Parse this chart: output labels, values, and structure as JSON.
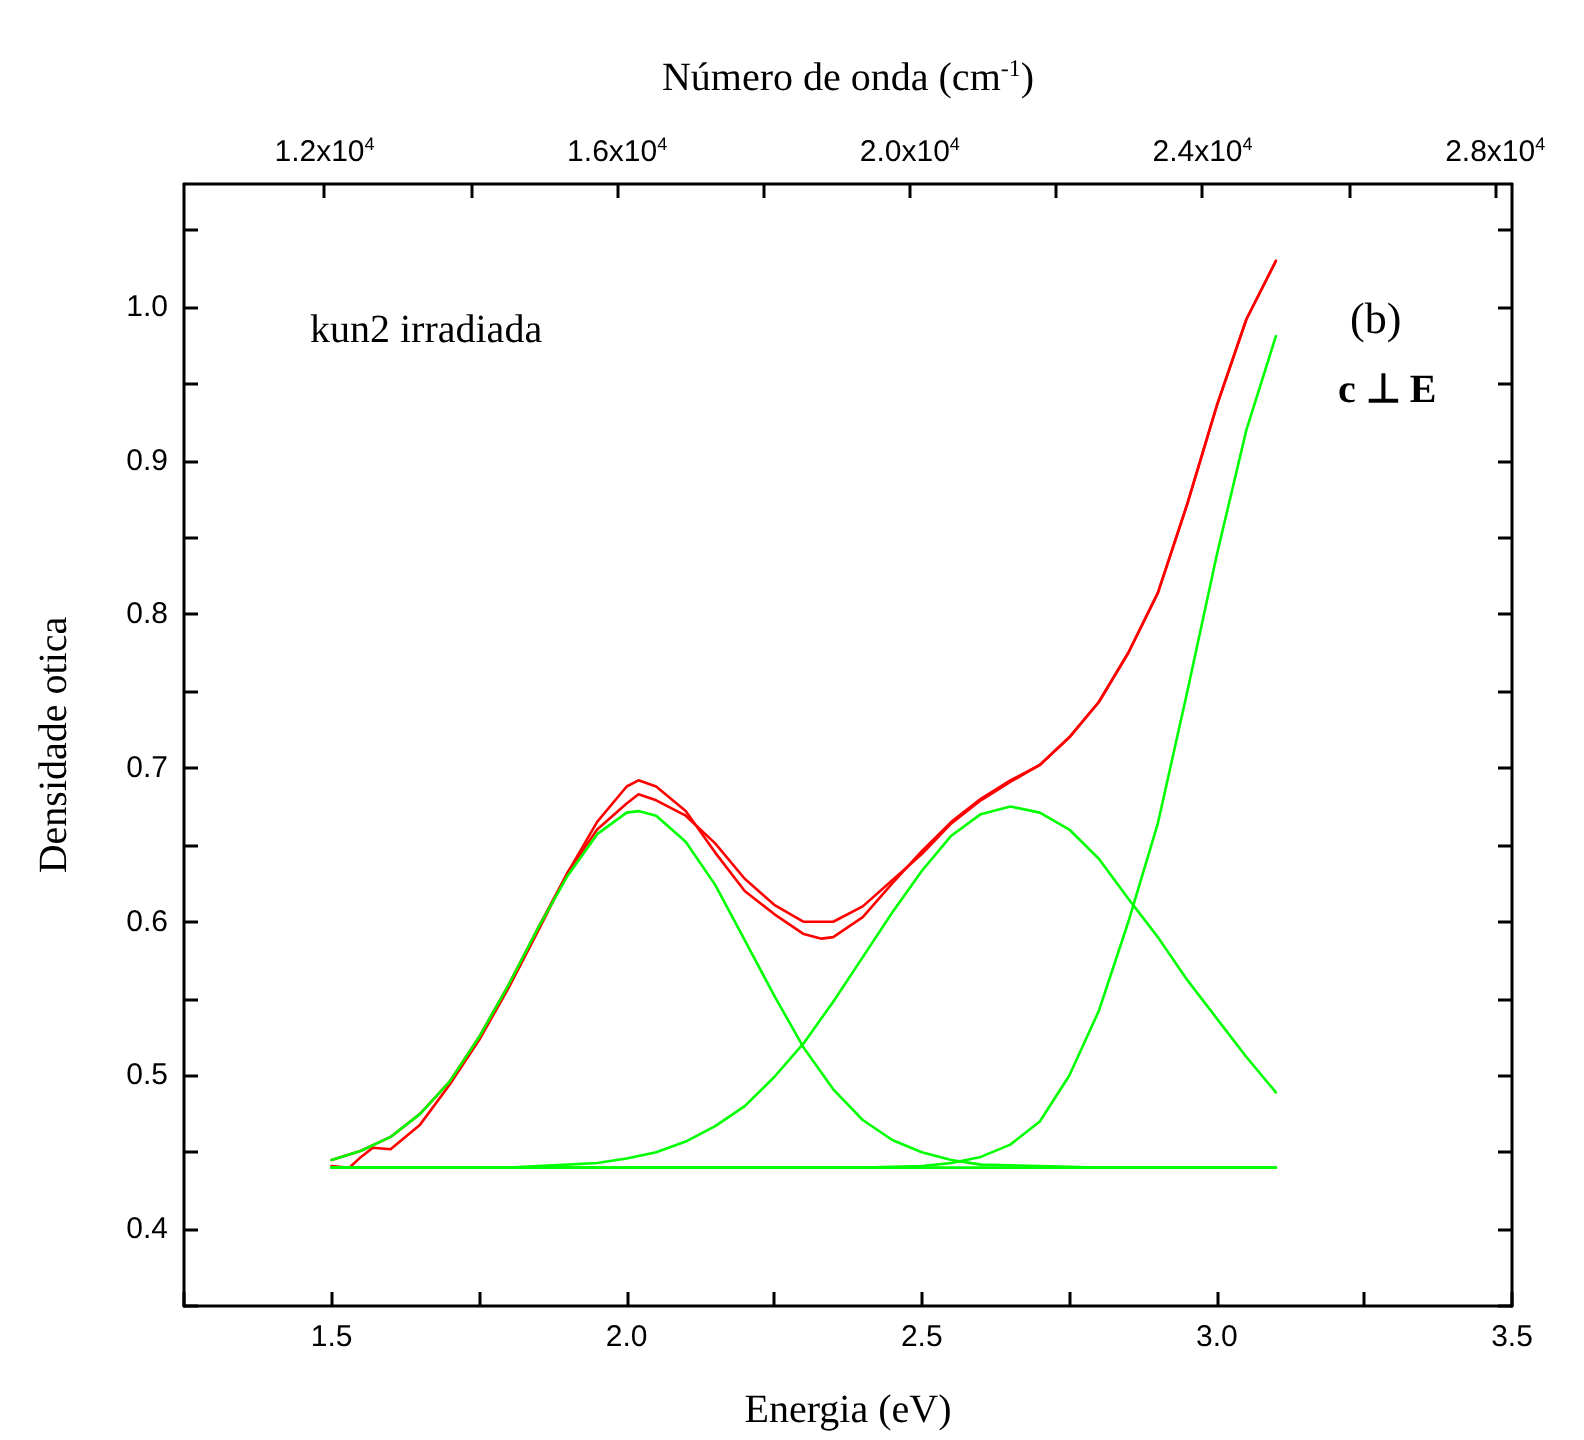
{
  "chart_data": {
    "type": "line",
    "xlabel": "Energia (eV)",
    "ylabel": "Densidade otica",
    "x2label": "Número de onda (cm$^{-1}$)",
    "annotations": [
      "kun2 irradiada",
      "(b)",
      "c ⊥ E"
    ],
    "xlim": [
      1.25,
      3.5
    ],
    "xticks": [
      {
        "value": 1.25,
        "label": null
      },
      {
        "value": 1.5,
        "label": "1.5"
      },
      {
        "value": 1.75,
        "label": null
      },
      {
        "value": 2,
        "label": "2.0"
      },
      {
        "value": 2.25,
        "label": null
      },
      {
        "value": 2.5,
        "label": "2.5"
      },
      {
        "value": 2.75,
        "label": null
      },
      {
        "value": 3,
        "label": "3.0"
      },
      {
        "value": 3.25,
        "label": null
      },
      {
        "value": 3.5,
        "label": "3.5"
      }
    ],
    "x2lim": [
      10080,
      28230
    ],
    "x2ticks": [
      {
        "value": 12000,
        "label": "1.2x10$^{4}$"
      },
      {
        "value": 14000,
        "label": null
      },
      {
        "value": 16000,
        "label": "1.6x10$^{4}$"
      },
      {
        "value": 18000,
        "label": null
      },
      {
        "value": 20000,
        "label": "2.0x10$^{4}$"
      },
      {
        "value": 22000,
        "label": null
      },
      {
        "value": 24000,
        "label": "2.4x10$^{4}$"
      },
      {
        "value": 26000,
        "label": null
      },
      {
        "value": 28000,
        "label": "2.8x10$^{4}$"
      }
    ],
    "ylim": [
      0.35,
      1.08
    ],
    "yticks": [
      {
        "value": 0.35,
        "label": null
      },
      0.4,
      {
        "value": 0.45,
        "label": null
      },
      0.5,
      {
        "value": 0.55,
        "label": null
      },
      0.6,
      {
        "value": 0.65,
        "label": null
      },
      0.7,
      {
        "value": 0.75,
        "label": null
      },
      0.8,
      {
        "value": 0.85,
        "label": null
      },
      0.9,
      {
        "value": 0.95,
        "label": null
      },
      {
        "value": 1,
        "label": "1.0"
      },
      {
        "value": 1.05,
        "label": null
      }
    ],
    "grid": false,
    "marker": "none",
    "line_style": "solid",
    "series": [
      {
        "color": "#ff0000",
        "x": [
          1.5,
          1.53,
          1.55,
          1.57,
          1.6,
          1.65,
          1.7,
          1.75,
          1.8,
          1.85,
          1.9,
          1.95,
          2.0,
          2.02,
          2.05,
          2.1,
          2.15,
          2.2,
          2.25,
          2.3,
          2.33,
          2.35,
          2.4,
          2.45,
          2.5,
          2.55,
          2.6,
          2.65,
          2.7,
          2.75,
          2.8,
          2.85,
          2.9,
          2.95,
          3.0,
          3.05,
          3.1
        ],
        "values": [
          0.441,
          0.44,
          0.447,
          0.453,
          0.452,
          0.468,
          0.494,
          0.523,
          0.557,
          0.594,
          0.632,
          0.665,
          0.688,
          0.692,
          0.688,
          0.672,
          0.645,
          0.62,
          0.605,
          0.592,
          0.589,
          0.59,
          0.603,
          0.625,
          0.646,
          0.665,
          0.68,
          0.692,
          0.702,
          0.72,
          0.743,
          0.775,
          0.814,
          0.872,
          0.936,
          0.992,
          1.03
        ]
      },
      {
        "color": "#ff0000",
        "x": [
          1.5,
          1.55,
          1.6,
          1.65,
          1.7,
          1.75,
          1.8,
          1.85,
          1.9,
          1.95,
          2.0,
          2.02,
          2.05,
          2.1,
          2.15,
          2.2,
          2.25,
          2.3,
          2.35,
          2.4,
          2.45,
          2.5,
          2.55,
          2.6,
          2.65,
          2.7,
          2.75,
          2.8,
          2.85,
          2.9,
          2.95,
          3.0,
          3.05,
          3.1
        ],
        "values": [
          0.445,
          0.451,
          0.46,
          0.475,
          0.496,
          0.525,
          0.559,
          0.596,
          0.632,
          0.66,
          0.677,
          0.683,
          0.679,
          0.669,
          0.651,
          0.628,
          0.611,
          0.6,
          0.6,
          0.61,
          0.627,
          0.644,
          0.664,
          0.679,
          0.691,
          0.702,
          0.72,
          0.743,
          0.775,
          0.814,
          0.872,
          0.936,
          0.992,
          1.03
        ]
      },
      {
        "color": "#00ff00",
        "x": [
          1.5,
          1.55,
          1.6,
          1.65,
          1.7,
          1.75,
          1.8,
          1.85,
          1.9,
          1.95,
          2.0,
          2.02,
          2.05,
          2.1,
          2.15,
          2.2,
          2.25,
          2.3,
          2.35,
          2.4,
          2.45,
          2.5,
          2.55,
          2.6,
          2.7,
          2.8,
          3.1
        ],
        "values": [
          0.445,
          0.451,
          0.46,
          0.475,
          0.496,
          0.525,
          0.559,
          0.596,
          0.63,
          0.657,
          0.671,
          0.672,
          0.669,
          0.652,
          0.624,
          0.588,
          0.552,
          0.518,
          0.491,
          0.471,
          0.458,
          0.45,
          0.445,
          0.442,
          0.441,
          0.44,
          0.44
        ]
      },
      {
        "color": "#00ff00",
        "x": [
          1.5,
          1.8,
          1.9,
          1.95,
          2.0,
          2.05,
          2.1,
          2.15,
          2.2,
          2.25,
          2.3,
          2.35,
          2.4,
          2.45,
          2.5,
          2.55,
          2.6,
          2.65,
          2.7,
          2.75,
          2.8,
          2.85,
          2.9,
          2.95,
          3.0,
          3.05,
          3.1
        ],
        "values": [
          0.44,
          0.44,
          0.442,
          0.443,
          0.446,
          0.45,
          0.457,
          0.467,
          0.48,
          0.499,
          0.521,
          0.548,
          0.577,
          0.606,
          0.633,
          0.656,
          0.67,
          0.675,
          0.671,
          0.66,
          0.641,
          0.615,
          0.59,
          0.562,
          0.537,
          0.512,
          0.489
        ]
      },
      {
        "color": "#00ff00",
        "x": [
          1.5,
          2.4,
          2.5,
          2.55,
          2.6,
          2.65,
          2.7,
          2.75,
          2.8,
          2.85,
          2.9,
          2.95,
          3.0,
          3.05,
          3.1
        ],
        "values": [
          0.44,
          0.44,
          0.441,
          0.443,
          0.447,
          0.455,
          0.47,
          0.5,
          0.542,
          0.6,
          0.664,
          0.75,
          0.839,
          0.92,
          0.981
        ]
      },
      {
        "color": "#00ff00",
        "x": [
          1.5,
          3.1
        ],
        "values": [
          0.44,
          0.44
        ]
      }
    ]
  }
}
